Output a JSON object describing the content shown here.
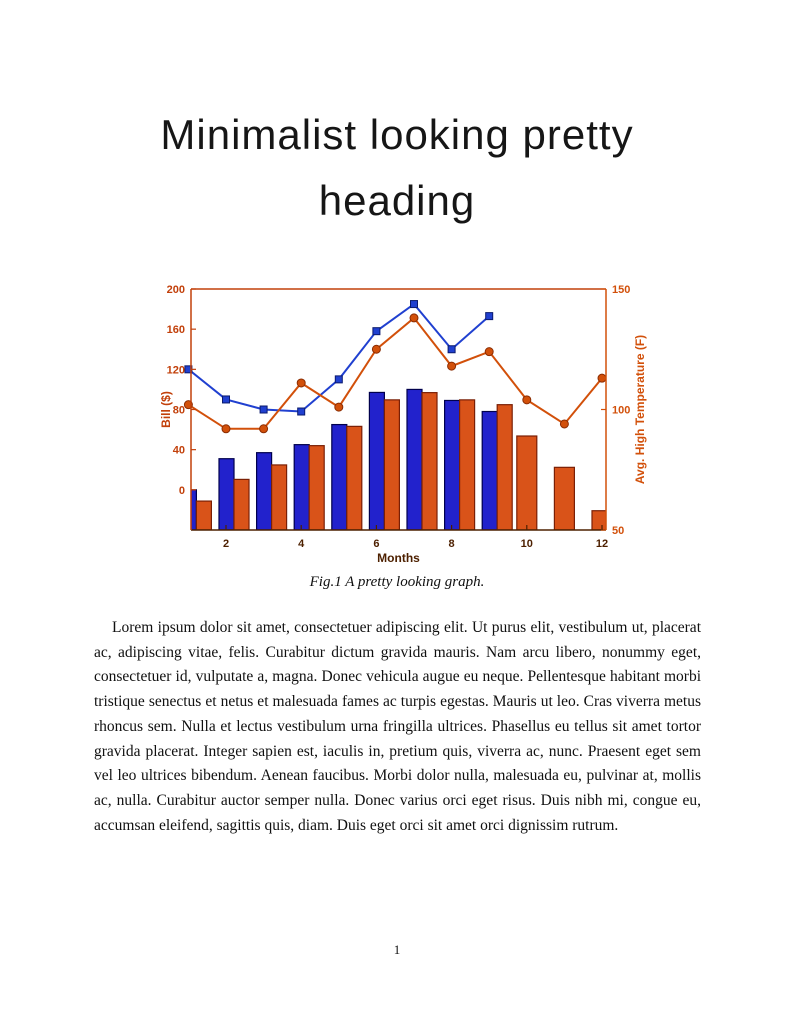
{
  "document": {
    "title_line1": "Minimalist looking pretty",
    "title_line2": "heading",
    "figure_caption": "Fig.1 A pretty looking graph.",
    "paragraph": "Lorem ipsum dolor sit amet, consectetuer adipiscing elit. Ut purus elit, vestibulum ut, placerat ac, adipiscing vitae, felis. Curabitur dictum gravida mauris. Nam arcu libero, nonummy eget, consectetuer id, vulputate a, magna. Donec vehicula augue eu neque. Pellentesque habitant morbi tristique senectus et netus et malesuada fames ac turpis egestas. Mauris ut leo. Cras viverra metus rhoncus sem. Nulla et lectus vestibulum urna fringilla ultrices. Phasellus eu tellus sit amet tortor gravida placerat. Integer sapien est, iaculis in, pretium quis, viverra ac, nunc. Praesent eget sem vel leo ultrices bibendum. Aenean faucibus. Morbi dolor nulla, malesuada eu, pulvinar at, mollis ac, nulla. Curabitur auctor semper nulla. Donec varius orci eget risus. Duis nibh mi, congue eu, accumsan eleifend, sagittis quis, diam. Duis eget orci sit amet orci dignissim rutrum.",
    "page_number": "1"
  },
  "chart_data": {
    "type": "bar",
    "subtype": "grouped bars with two overlaid lines, dual y-axes",
    "title": "",
    "xlabel": "Months",
    "ylabel_left": "Bill ($)",
    "ylabel_right": "Avg. High Temperature (F)",
    "x_ticks": [
      2,
      4,
      6,
      8,
      10,
      12
    ],
    "y_left_range": [
      -40,
      200
    ],
    "y_left_ticks": [
      0,
      40,
      80,
      120,
      160,
      200
    ],
    "y_right_range": [
      50,
      150
    ],
    "y_right_ticks": [
      50,
      100,
      150
    ],
    "months": [
      1,
      2,
      3,
      4,
      5,
      6,
      7,
      8,
      9,
      10,
      11,
      12
    ],
    "bar_baseline": "axis_minimum",
    "grid": false,
    "legend": null,
    "colors": {
      "left_axis": "#c2400a",
      "right_axis": "#d2500a",
      "x_axis": "#4d2000"
    },
    "series": [
      {
        "name": "bill-bars",
        "type": "bar",
        "axis": "left",
        "color": "#2222cc",
        "edge": "#00004d",
        "values": [
          0,
          31,
          37,
          45,
          65,
          97,
          100,
          89,
          78,
          null,
          null,
          null
        ]
      },
      {
        "name": "temperature-bars",
        "type": "bar",
        "axis": "right",
        "color": "#d95319",
        "edge": "#7a1f05",
        "values": [
          62,
          71,
          77,
          85,
          93,
          104,
          107,
          104,
          102,
          89,
          76,
          58
        ]
      },
      {
        "name": "bill-line",
        "type": "line",
        "axis": "left",
        "color": "#2040d0",
        "edge": "#0a1a6e",
        "marker": "square",
        "values": [
          120,
          90,
          80,
          78,
          110,
          158,
          185,
          140,
          173,
          null,
          null,
          null
        ]
      },
      {
        "name": "temperature-line",
        "type": "line",
        "axis": "right",
        "color": "#d2500a",
        "edge": "#8a2c02",
        "marker": "circle",
        "values": [
          102,
          92,
          92,
          111,
          101,
          125,
          138,
          118,
          124,
          104,
          94,
          113
        ]
      }
    ]
  }
}
